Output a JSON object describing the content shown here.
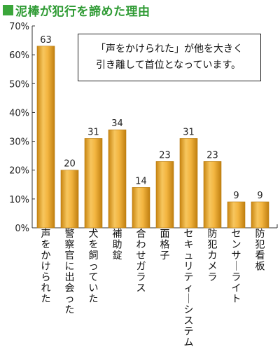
{
  "header": {
    "title": "泥棒が犯行を諦めた理由"
  },
  "colors": {
    "accent_green": "#2f9b34",
    "bar_top": "#f9d27a",
    "bar_mid": "#e0a01c",
    "bar_edge": "#b97a0e"
  },
  "callout": {
    "text": "「声をかけられた」が他を大きく\n引き離して首位となっています。"
  },
  "chart_data": {
    "type": "bar",
    "title": "泥棒が犯行を諦めた理由",
    "categories": [
      "声をかけられた",
      "警察官に出会った",
      "犬を飼っていた",
      "補助錠",
      "合わせガラス",
      "面格子",
      "セキュリティーシステム",
      "防犯カメラ",
      "センサーライト",
      "防犯看板"
    ],
    "values": [
      63,
      20,
      31,
      34,
      14,
      23,
      31,
      23,
      9,
      9
    ],
    "ylim": [
      0,
      70
    ],
    "yticks": [
      "0%",
      "10%",
      "20%",
      "30%",
      "40%",
      "50%",
      "60%",
      "70%"
    ],
    "ytick_values": [
      0,
      10,
      20,
      30,
      40,
      50,
      60,
      70
    ],
    "xlabel": "",
    "ylabel": "",
    "grid": false,
    "legend": "none"
  }
}
